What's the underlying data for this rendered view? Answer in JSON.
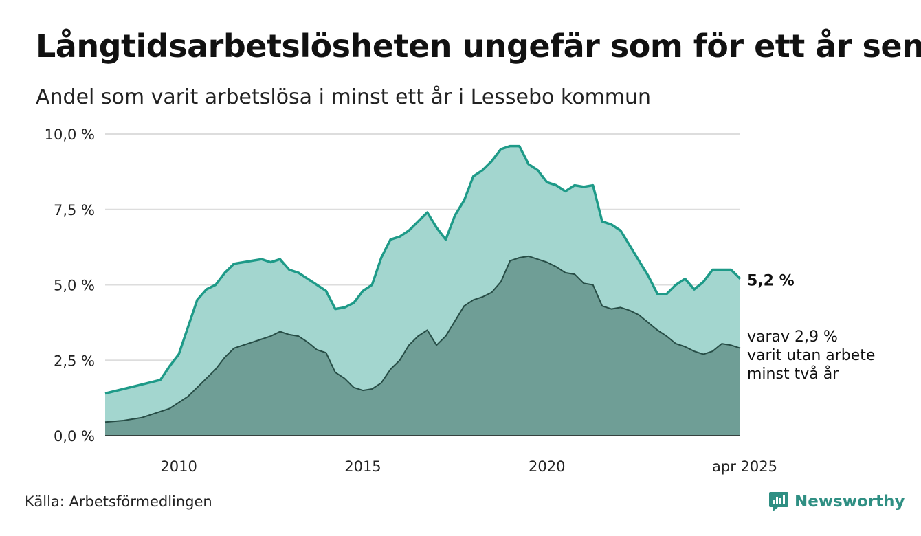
{
  "title": "Långtidsarbetslösheten ungefär som för ett år sen",
  "subtitle": "Andel som varit arbetslösa i minst ett år i Lessebo kommun",
  "source": "Källa: Arbetsförmedlingen",
  "brand": "Newsworthy",
  "colors": {
    "long_line": "#1e9a88",
    "long_fill": "#a3d6cf",
    "two_line": "#274d46",
    "two_fill": "#6f9e96",
    "grid": "#dddddd",
    "brand": "#2f8f83"
  },
  "chart_data": {
    "type": "area",
    "x_unit": "year",
    "ylim": [
      0,
      10
    ],
    "y_ticks": [
      0,
      2.5,
      5,
      7.5,
      10
    ],
    "y_tick_labels": [
      "0,0 %",
      "2,5 %",
      "5,0 %",
      "7,5 %",
      "10,0 %"
    ],
    "x_ticks": [
      2010,
      2015,
      2020,
      2025.25
    ],
    "x_tick_labels": [
      "2010",
      "2015",
      "2020",
      "apr 2025"
    ],
    "grid": true,
    "series": [
      {
        "key": "minst_ett_ar",
        "end_label": "5,2 %",
        "x": [
          2008.0,
          2008.5,
          2009.0,
          2009.5,
          2009.75,
          2010.0,
          2010.25,
          2010.5,
          2010.75,
          2011.0,
          2011.25,
          2011.5,
          2011.75,
          2012.0,
          2012.25,
          2012.5,
          2012.75,
          2013.0,
          2013.25,
          2013.5,
          2013.75,
          2014.0,
          2014.25,
          2014.5,
          2014.75,
          2015.0,
          2015.25,
          2015.5,
          2015.75,
          2016.0,
          2016.25,
          2016.5,
          2016.75,
          2017.0,
          2017.25,
          2017.5,
          2017.75,
          2018.0,
          2018.25,
          2018.5,
          2018.75,
          2019.0,
          2019.25,
          2019.5,
          2019.75,
          2020.0,
          2020.25,
          2020.5,
          2020.75,
          2021.0,
          2021.25,
          2021.5,
          2021.75,
          2022.0,
          2022.25,
          2022.5,
          2022.75,
          2023.0,
          2023.25,
          2023.5,
          2023.75,
          2024.0,
          2024.25,
          2024.5,
          2024.75,
          2025.0,
          2025.25
        ],
        "values": [
          1.4,
          1.55,
          1.7,
          1.85,
          2.3,
          2.7,
          3.6,
          4.5,
          4.85,
          5.0,
          5.4,
          5.7,
          5.75,
          5.8,
          5.85,
          5.75,
          5.85,
          5.5,
          5.4,
          5.2,
          5.0,
          4.8,
          4.2,
          4.25,
          4.4,
          4.8,
          5.0,
          5.9,
          6.5,
          6.6,
          6.8,
          7.1,
          7.4,
          6.9,
          6.5,
          7.3,
          7.8,
          8.6,
          8.8,
          9.1,
          9.5,
          9.6,
          9.6,
          9.0,
          8.8,
          8.4,
          8.3,
          8.1,
          8.3,
          8.25,
          8.3,
          7.1,
          7.0,
          6.8,
          6.3,
          5.8,
          5.3,
          4.7,
          4.7,
          5.0,
          5.2,
          4.85,
          5.1,
          5.5,
          5.5,
          5.5,
          5.2
        ]
      },
      {
        "key": "minst_tva_ar",
        "end_label": [
          "varav 2,9 %",
          "varit utan arbete",
          "minst två år"
        ],
        "x": [
          2008.0,
          2008.5,
          2009.0,
          2009.5,
          2009.75,
          2010.0,
          2010.25,
          2010.5,
          2010.75,
          2011.0,
          2011.25,
          2011.5,
          2011.75,
          2012.0,
          2012.25,
          2012.5,
          2012.75,
          2013.0,
          2013.25,
          2013.5,
          2013.75,
          2014.0,
          2014.25,
          2014.5,
          2014.75,
          2015.0,
          2015.25,
          2015.5,
          2015.75,
          2016.0,
          2016.25,
          2016.5,
          2016.75,
          2017.0,
          2017.25,
          2017.5,
          2017.75,
          2018.0,
          2018.25,
          2018.5,
          2018.75,
          2019.0,
          2019.25,
          2019.5,
          2019.75,
          2020.0,
          2020.25,
          2020.5,
          2020.75,
          2021.0,
          2021.25,
          2021.5,
          2021.75,
          2022.0,
          2022.25,
          2022.5,
          2022.75,
          2023.0,
          2023.25,
          2023.5,
          2023.75,
          2024.0,
          2024.25,
          2024.5,
          2024.75,
          2025.0,
          2025.25
        ],
        "values": [
          0.45,
          0.5,
          0.6,
          0.8,
          0.9,
          1.1,
          1.3,
          1.6,
          1.9,
          2.2,
          2.6,
          2.9,
          3.0,
          3.1,
          3.2,
          3.3,
          3.45,
          3.35,
          3.3,
          3.1,
          2.85,
          2.75,
          2.1,
          1.9,
          1.6,
          1.5,
          1.55,
          1.75,
          2.2,
          2.5,
          3.0,
          3.3,
          3.5,
          3.0,
          3.3,
          3.8,
          4.3,
          4.5,
          4.6,
          4.75,
          5.1,
          5.8,
          5.9,
          5.95,
          5.85,
          5.75,
          5.6,
          5.4,
          5.35,
          5.05,
          5.0,
          4.3,
          4.2,
          4.25,
          4.15,
          4.0,
          3.75,
          3.5,
          3.3,
          3.05,
          2.95,
          2.8,
          2.7,
          2.8,
          3.05,
          3.0,
          2.9
        ]
      }
    ]
  }
}
